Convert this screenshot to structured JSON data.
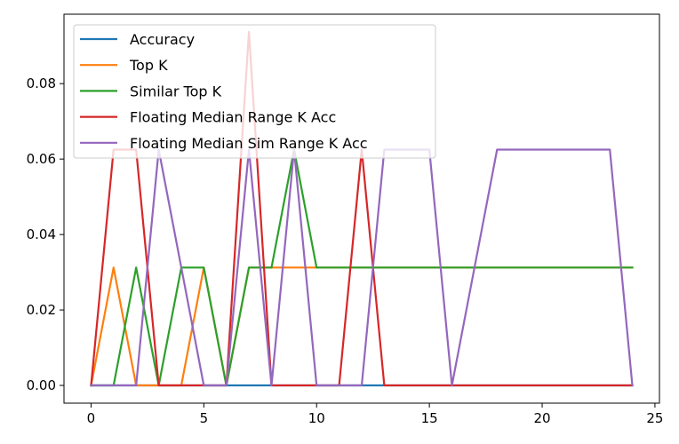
{
  "chart_data": {
    "type": "line",
    "title": "",
    "xlabel": "",
    "ylabel": "",
    "xlim": [
      -1.2,
      25.2
    ],
    "ylim": [
      -0.0047,
      0.0984
    ],
    "xticks": [
      0,
      5,
      10,
      15,
      20,
      25
    ],
    "xtick_labels": [
      "0",
      "5",
      "10",
      "15",
      "20",
      "25"
    ],
    "yticks": [
      0.0,
      0.02,
      0.04,
      0.06,
      0.08
    ],
    "ytick_labels": [
      "0.00",
      "0.02",
      "0.04",
      "0.06",
      "0.08"
    ],
    "grid": false,
    "legend_position": "top-left",
    "x": [
      0,
      1,
      2,
      3,
      4,
      5,
      6,
      7,
      8,
      9,
      10,
      11,
      12,
      13,
      14,
      15,
      16,
      17,
      18,
      19,
      20,
      21,
      22,
      23,
      24
    ],
    "series": [
      {
        "name": "Accuracy",
        "color": "#1f77b4",
        "values": [
          0,
          0,
          0,
          0,
          0,
          0,
          0,
          0,
          0,
          0,
          0,
          0,
          0,
          0,
          0,
          0,
          0,
          0,
          0,
          0,
          0,
          0,
          0,
          0,
          0
        ]
      },
      {
        "name": "Top K",
        "color": "#ff7f0e",
        "values": [
          0,
          0.03125,
          0,
          0,
          0,
          0.03125,
          0,
          0.03125,
          0.03125,
          0.03125,
          0.03125,
          0.03125,
          0.03125,
          0.03125,
          0.03125,
          0.03125,
          0.03125,
          0.03125,
          0.03125,
          0.03125,
          0.03125,
          0.03125,
          0.03125,
          0.03125,
          0.03125
        ]
      },
      {
        "name": "Similar Top K",
        "color": "#2ca02c",
        "values": [
          0,
          0,
          0.03125,
          0,
          0.03125,
          0.03125,
          0,
          0.03125,
          0.03125,
          0.0625,
          0.03125,
          0.03125,
          0.03125,
          0.03125,
          0.03125,
          0.03125,
          0.03125,
          0.03125,
          0.03125,
          0.03125,
          0.03125,
          0.03125,
          0.03125,
          0.03125,
          0.03125
        ]
      },
      {
        "name": "Floating Median Range K Acc",
        "color": "#d62728",
        "values": [
          0,
          0.0625,
          0.0625,
          0,
          0,
          0,
          0,
          0.09375,
          0,
          0,
          0,
          0,
          0.0625,
          0,
          0,
          0,
          0,
          0,
          0,
          0,
          0,
          0,
          0,
          0,
          0
        ]
      },
      {
        "name": "Floating Median Sim Range K Acc",
        "color": "#9467bd",
        "values": [
          0,
          0,
          0,
          0.0625,
          0.03125,
          0,
          0,
          0.0625,
          0,
          0.0625,
          0,
          0,
          0,
          0.0625,
          0.0625,
          0.0625,
          0,
          0.03125,
          0.0625,
          0.0625,
          0.0625,
          0.0625,
          0.0625,
          0.0625,
          0
        ]
      }
    ]
  }
}
